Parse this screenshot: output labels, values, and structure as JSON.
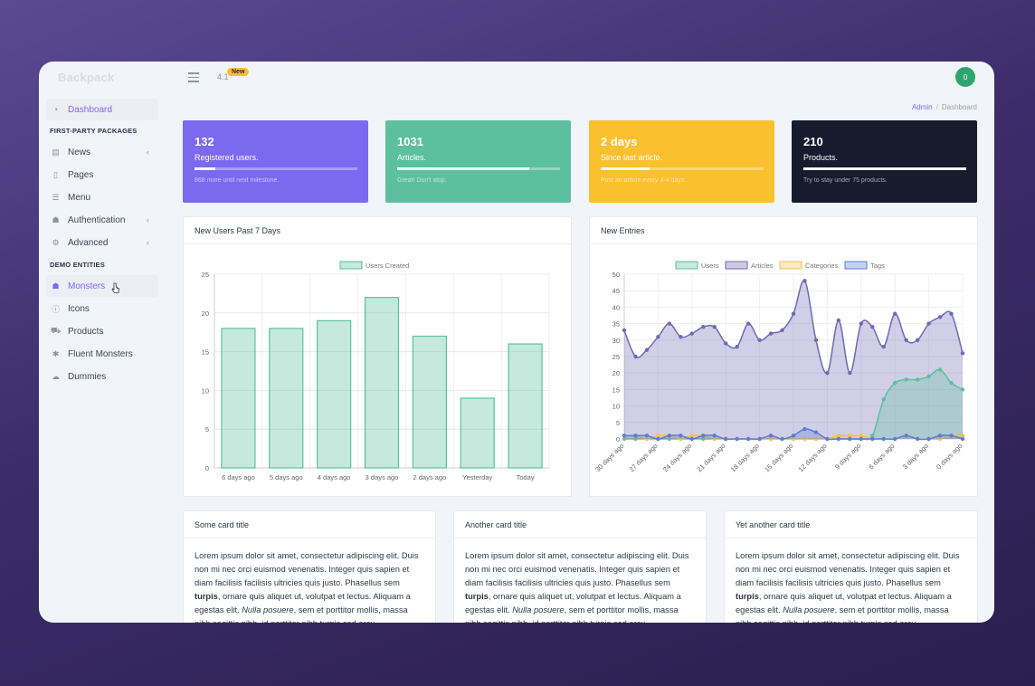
{
  "app": {
    "brand": "Backpack",
    "version": "4.1",
    "new_badge": "New",
    "avatar_initial": "0"
  },
  "breadcrumb": {
    "root": "Admin",
    "current": "Dashboard"
  },
  "sidebar": {
    "dashboard": "Dashboard",
    "section1": "FIRST-PARTY PACKAGES",
    "section2": "DEMO ENTITIES",
    "items": [
      {
        "label": "News",
        "icon": "newspaper-icon"
      },
      {
        "label": "Pages",
        "icon": "file-icon"
      },
      {
        "label": "Menu",
        "icon": "list-icon"
      },
      {
        "label": "Authentication",
        "icon": "user-group-icon"
      },
      {
        "label": "Advanced",
        "icon": "cogs-icon"
      },
      {
        "label": "Monsters",
        "icon": "monster-icon"
      },
      {
        "label": "Icons",
        "icon": "info-icon"
      },
      {
        "label": "Products",
        "icon": "cart-icon"
      },
      {
        "label": "Fluent Monsters",
        "icon": "bug-icon"
      },
      {
        "label": "Dummies",
        "icon": "cloud-icon"
      }
    ],
    "chevron": "‹"
  },
  "stats": [
    {
      "value": "132",
      "label": "Registered users.",
      "note": "868 more until next milestone.",
      "progress": 0.13,
      "color": "#7c69ef"
    },
    {
      "value": "1031",
      "label": "Articles.",
      "note": "Great! Don't stop.",
      "progress": 0.81,
      "color": "#5cc09f"
    },
    {
      "value": "2 days",
      "label": "Since last article.",
      "note": "Post an article every 3-4 days.",
      "progress": 0.3,
      "color": "#fbc02d"
    },
    {
      "value": "210",
      "label": "Products.",
      "note": "Try to stay under 75 products.",
      "progress": 1.0,
      "color": "#161c2d"
    }
  ],
  "chart1": {
    "title": "New Users Past 7 Days",
    "chart_data": {
      "type": "bar",
      "legend": [
        "Users Created"
      ],
      "categories": [
        "6 days ago",
        "5 days ago",
        "4 days ago",
        "3 days ago",
        "2 days ago",
        "Yesterday",
        "Today"
      ],
      "values": [
        18,
        18,
        19,
        22,
        17,
        9,
        16
      ],
      "ylim": [
        0,
        25
      ],
      "yticks": [
        "0",
        "5",
        "10",
        "15",
        "20",
        "25"
      ]
    }
  },
  "chart2": {
    "title": "New Entries",
    "chart_data": {
      "type": "area",
      "legend": [
        "Users",
        "Articles",
        "Categories",
        "Tags"
      ],
      "x_labels": [
        "30 days ago",
        "27 days ago",
        "24 days ago",
        "21 days ago",
        "18 days ago",
        "15 days ago",
        "12 days ago",
        "9 days ago",
        "6 days ago",
        "3 days ago",
        "0 days ago"
      ],
      "ylim": [
        0,
        50
      ],
      "yticks": [
        "0",
        "5",
        "10",
        "15",
        "20",
        "25",
        "30",
        "35",
        "40",
        "45",
        "50"
      ],
      "series": [
        {
          "name": "Articles",
          "color": "#6f6ab3",
          "values": [
            33,
            25,
            27,
            31,
            35,
            31,
            32,
            34,
            34,
            29,
            28,
            35,
            30,
            32,
            33,
            38,
            48,
            30,
            20,
            36,
            20,
            35,
            34,
            28,
            38,
            30,
            30,
            35,
            37,
            38,
            26
          ]
        },
        {
          "name": "Users",
          "color": "#5cc09f",
          "values": [
            0,
            0,
            0,
            0,
            0,
            0,
            0,
            0,
            0,
            0,
            0,
            0,
            0,
            0,
            0,
            0,
            0,
            0,
            0,
            0,
            0,
            0,
            1,
            12,
            17,
            18,
            18,
            19,
            21,
            17,
            15
          ]
        },
        {
          "name": "Categories",
          "color": "#f2c14d",
          "values": [
            1,
            1,
            0,
            1,
            1,
            0,
            1,
            1,
            0,
            0,
            0,
            0,
            0,
            0,
            0,
            0,
            0,
            0,
            0,
            1,
            1,
            1,
            0,
            0,
            0,
            1,
            0,
            0,
            0,
            1,
            1
          ]
        },
        {
          "name": "Tags",
          "color": "#5c7dd6",
          "values": [
            1,
            1,
            1,
            0,
            1,
            1,
            0,
            1,
            1,
            0,
            0,
            0,
            0,
            1,
            0,
            1,
            3,
            2,
            0,
            0,
            0,
            0,
            0,
            0,
            0,
            1,
            0,
            0,
            1,
            1,
            0
          ]
        }
      ]
    }
  },
  "cards": [
    {
      "title": "Some card title",
      "text_a": "Lorem ipsum dolor sit amet, consectetur adipiscing elit. Duis non mi nec orci euismod venenatis. Integer quis sapien et diam facilisis facilisis ultricies quis justo. Phasellus sem ",
      "bold": "turpis",
      "text_b": ", ornare quis aliquet ut, volutpat et lectus. Aliquam a egestas elit. ",
      "italic": "Nulla posuere",
      "text_c": ", sem et porttitor mollis, massa nibh sagittis nibh, id porttitor nibh turpis sed arcu."
    },
    {
      "title": "Another card title",
      "text_a": "Lorem ipsum dolor sit amet, consectetur adipiscing elit. Duis non mi nec orci euismod venenatis. Integer quis sapien et diam facilisis facilisis ultricies quis justo. Phasellus sem ",
      "bold": "turpis",
      "text_b": ", ornare quis aliquet ut, volutpat et lectus. Aliquam a egestas elit. ",
      "italic": "Nulla posuere",
      "text_c": ", sem et porttitor mollis, massa nibh sagittis nibh, id porttitor nibh turpis sed arcu."
    },
    {
      "title": "Yet another card title",
      "text_a": "Lorem ipsum dolor sit amet, consectetur adipiscing elit. Duis non mi nec orci euismod venenatis. Integer quis sapien et diam facilisis facilisis ultricies quis justo. Phasellus sem ",
      "bold": "turpis",
      "text_b": ", ornare quis aliquet ut, volutpat et lectus. Aliquam a egestas elit. ",
      "italic": "Nulla posuere",
      "text_c": ", sem et porttitor mollis, massa nibh sagittis nibh, id porttitor nibh turpis sed arcu."
    }
  ]
}
